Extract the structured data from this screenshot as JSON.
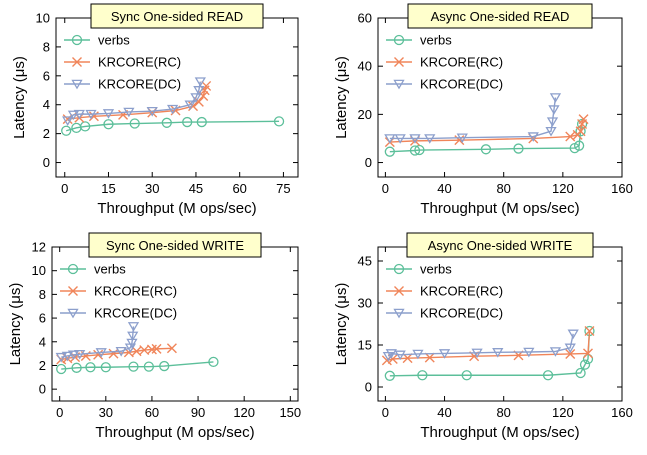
{
  "figure": {
    "colors": {
      "verbs": "#5cbf9a",
      "rc": "#f0855a",
      "dc": "#8c9fcc",
      "title_bg": "#ffffcc"
    }
  },
  "chart_data": [
    {
      "type": "line",
      "title": "Sync One-sided READ",
      "xlabel": "Throughput (M ops/sec)",
      "ylabel": "Latency (μs)",
      "xlim": [
        -3,
        80
      ],
      "ylim": [
        -1,
        10
      ],
      "xticks": [
        0,
        15,
        30,
        45,
        60,
        75
      ],
      "yticks": [
        0,
        2,
        4,
        6,
        8,
        10
      ],
      "legend_position": "top-left",
      "series": [
        {
          "name": "verbs",
          "marker": "circle",
          "x": [
            0.5,
            4,
            7,
            15,
            24,
            35,
            42,
            47,
            73.5
          ],
          "y": [
            2.2,
            2.4,
            2.5,
            2.65,
            2.7,
            2.75,
            2.8,
            2.8,
            2.85
          ]
        },
        {
          "name": "KRCORE(RC)",
          "marker": "x",
          "x": [
            1,
            5,
            10,
            20,
            30,
            38,
            44,
            46,
            47.5,
            48,
            48.5
          ],
          "y": [
            3.0,
            3.1,
            3.2,
            3.3,
            3.45,
            3.6,
            3.9,
            4.2,
            4.6,
            5.0,
            5.3
          ]
        },
        {
          "name": "KRCORE(DC)",
          "marker": "triangle_down",
          "x": [
            1,
            3,
            5,
            9,
            15,
            22,
            30,
            37,
            43,
            45,
            46,
            46.5
          ],
          "y": [
            2.9,
            3.3,
            3.35,
            3.35,
            3.4,
            3.5,
            3.55,
            3.7,
            4.0,
            4.5,
            5.0,
            5.6
          ]
        }
      ]
    },
    {
      "type": "line",
      "title": "Async One-sided READ",
      "xlabel": "Throughput (M ops/sec)",
      "ylabel": "Latency (μs)",
      "xlim": [
        -5,
        160
      ],
      "ylim": [
        -6,
        60
      ],
      "xticks": [
        0,
        40,
        80,
        120,
        160
      ],
      "yticks": [
        0,
        20,
        40,
        60
      ],
      "legend_position": "top-left",
      "series": [
        {
          "name": "verbs",
          "marker": "circle",
          "x": [
            3,
            20,
            23,
            68,
            90,
            128,
            131,
            132,
            133
          ],
          "y": [
            4.5,
            5,
            5.2,
            5.5,
            5.8,
            6,
            7,
            13,
            16
          ]
        },
        {
          "name": "KRCORE(RC)",
          "marker": "x",
          "x": [
            3,
            20,
            50,
            100,
            125,
            130,
            132,
            133,
            134
          ],
          "y": [
            8.5,
            9,
            9.3,
            10,
            10.8,
            11.5,
            13,
            16,
            18
          ]
        },
        {
          "name": "KRCORE(DC)",
          "marker": "triangle_down",
          "x": [
            3,
            10,
            20,
            30,
            52,
            100,
            112,
            113,
            114,
            115
          ],
          "y": [
            10,
            10,
            10,
            10,
            10.3,
            10.8,
            13,
            17,
            22,
            27
          ]
        }
      ]
    },
    {
      "type": "line",
      "title": "Sync One-sided WRITE",
      "xlabel": "Throughput (M ops/sec)",
      "ylabel": "Latency (μs)",
      "xlim": [
        -5,
        155
      ],
      "ylim": [
        -1,
        12
      ],
      "xticks": [
        0,
        30,
        60,
        90,
        120,
        150
      ],
      "yticks": [
        0,
        2,
        4,
        6,
        8,
        10,
        12
      ],
      "legend_position": "top-left",
      "series": [
        {
          "name": "verbs",
          "marker": "circle",
          "x": [
            1,
            11,
            20,
            30,
            48,
            58,
            68,
            100
          ],
          "y": [
            1.7,
            1.8,
            1.85,
            1.85,
            1.9,
            1.9,
            1.95,
            2.3
          ]
        },
        {
          "name": "KRCORE(RC)",
          "marker": "x",
          "x": [
            1,
            5,
            10,
            17,
            25,
            35,
            45,
            50,
            55,
            60,
            63,
            73
          ],
          "y": [
            2.5,
            2.6,
            2.7,
            2.8,
            2.9,
            3.0,
            3.1,
            3.2,
            3.3,
            3.35,
            3.4,
            3.45
          ]
        },
        {
          "name": "KRCORE(DC)",
          "marker": "triangle_down",
          "x": [
            1,
            5,
            9,
            13,
            27,
            40,
            46,
            47,
            47.5,
            48
          ],
          "y": [
            2.7,
            2.8,
            2.9,
            2.95,
            3.1,
            3.2,
            3.5,
            3.9,
            4.5,
            5.3
          ]
        }
      ]
    },
    {
      "type": "line",
      "title": "Async One-sided WRITE",
      "xlabel": "Throughput (M ops/sec)",
      "ylabel": "Latency (μs)",
      "xlim": [
        -5,
        160
      ],
      "ylim": [
        -5,
        50
      ],
      "xticks": [
        0,
        40,
        80,
        120,
        160
      ],
      "yticks": [
        0,
        15,
        30,
        45
      ],
      "legend_position": "top-left",
      "series": [
        {
          "name": "verbs",
          "marker": "circle",
          "x": [
            3,
            25,
            55,
            110,
            132,
            135,
            137,
            138
          ],
          "y": [
            4,
            4.2,
            4.2,
            4.2,
            5,
            8,
            10,
            20
          ]
        },
        {
          "name": "KRCORE(RC)",
          "marker": "x",
          "x": [
            1,
            5,
            15,
            30,
            60,
            90,
            125,
            137,
            138
          ],
          "y": [
            9.5,
            10,
            10.3,
            10.5,
            11,
            11.3,
            11.8,
            12,
            20
          ]
        },
        {
          "name": "KRCORE(DC)",
          "marker": "triangle_down",
          "x": [
            2,
            4,
            10,
            22,
            40,
            62,
            76,
            97,
            115,
            125,
            127
          ],
          "y": [
            11,
            12,
            11.5,
            11.8,
            12,
            12.2,
            12.4,
            12.5,
            12.7,
            14,
            19
          ]
        }
      ]
    }
  ]
}
